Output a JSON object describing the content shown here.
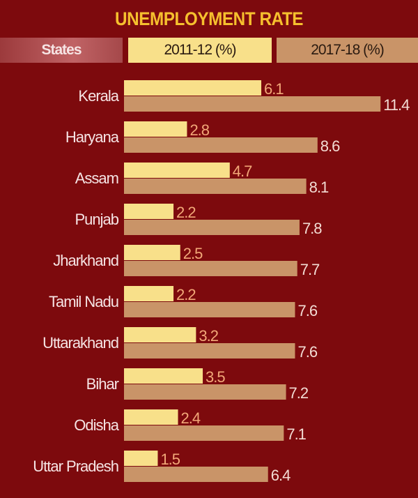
{
  "chart_data": {
    "type": "bar",
    "orientation": "horizontal",
    "title": "UNEMPLOYMENT RATE",
    "category_header": "States",
    "categories": [
      "Kerala",
      "Haryana",
      "Assam",
      "Punjab",
      "Jharkhand",
      "Tamil Nadu",
      "Uttarakhand",
      "Bihar",
      "Odisha",
      "Uttar Pradesh"
    ],
    "series": [
      {
        "name": "2011-12 (%)",
        "color": "#f8e08a",
        "label_color": "#f2a878",
        "values": [
          6.1,
          2.8,
          4.7,
          2.2,
          2.5,
          2.2,
          3.2,
          3.5,
          2.4,
          1.5
        ]
      },
      {
        "name": "2017-18 (%)",
        "color": "#c99468",
        "label_color": "#f3dcd4",
        "values": [
          11.4,
          8.6,
          8.1,
          7.8,
          7.7,
          7.6,
          7.6,
          7.2,
          7.1,
          6.4
        ]
      }
    ],
    "xlim": [
      0,
      12
    ],
    "grid": false,
    "legend": "top",
    "colors": {
      "background": "#7d0a0d",
      "title": "#f6c02e",
      "category_label": "#f6e4e4"
    }
  }
}
